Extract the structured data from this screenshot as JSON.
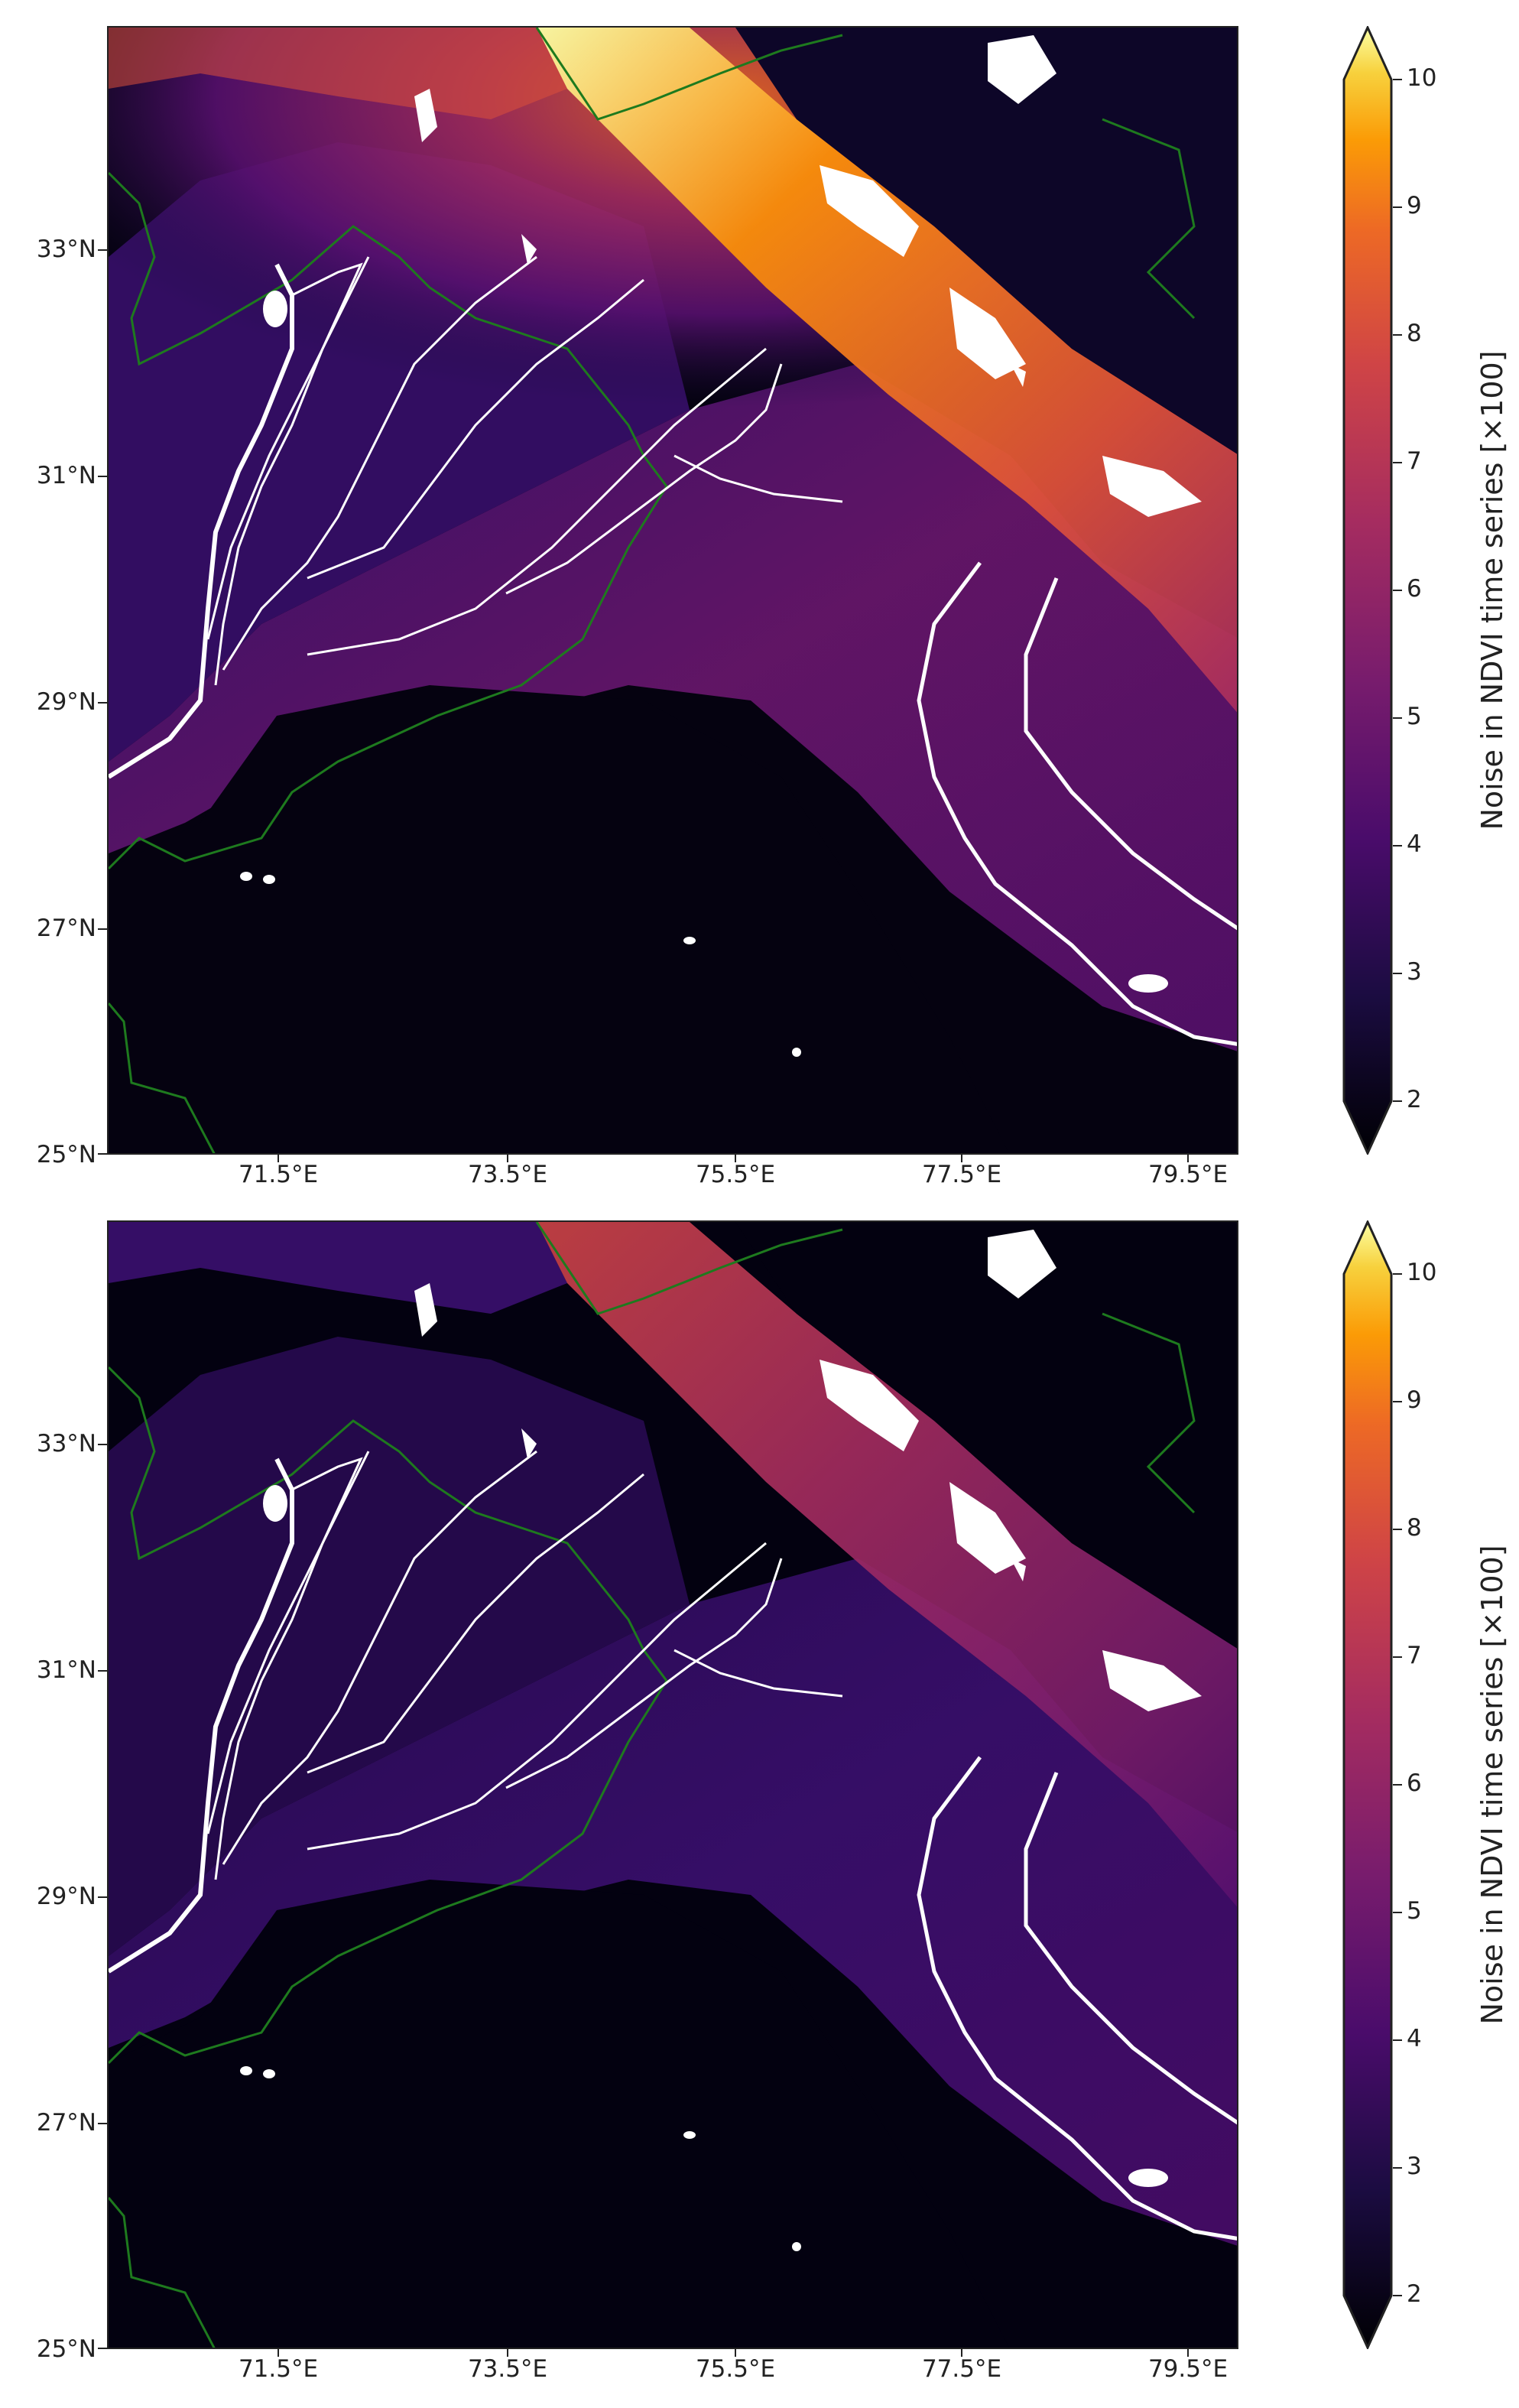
{
  "panels": [
    {
      "id": "top",
      "x_ticks": [
        "71.5°E",
        "73.5°E",
        "75.5°E",
        "77.5°E",
        "79.5°E"
      ],
      "y_ticks": [
        "33°N",
        "31°N",
        "29°N",
        "27°N",
        "25°N"
      ],
      "colorbar": {
        "label": "Noise in NDVI time series [×100]",
        "ticks": [
          "10",
          "9",
          "8",
          "7",
          "6",
          "5",
          "4",
          "3",
          "2"
        ],
        "colormap": "inferno",
        "range": [
          2,
          10
        ],
        "extend": "both"
      }
    },
    {
      "id": "bottom",
      "x_ticks": [
        "71.5°E",
        "73.5°E",
        "75.5°E",
        "77.5°E",
        "79.5°E"
      ],
      "y_ticks": [
        "33°N",
        "31°N",
        "29°N",
        "27°N",
        "25°N"
      ],
      "colorbar": {
        "label": "Noise in NDVI time series [×100]",
        "ticks": [
          "10",
          "9",
          "8",
          "7",
          "6",
          "5",
          "4",
          "3",
          "2"
        ],
        "colormap": "inferno",
        "range": [
          2,
          10
        ],
        "extend": "both"
      }
    }
  ],
  "colors": {
    "border_line": "#1e7a1e",
    "rivers": "#ffffff",
    "low": "#000004",
    "mid": "#57106e",
    "high": "#fcffa4"
  }
}
